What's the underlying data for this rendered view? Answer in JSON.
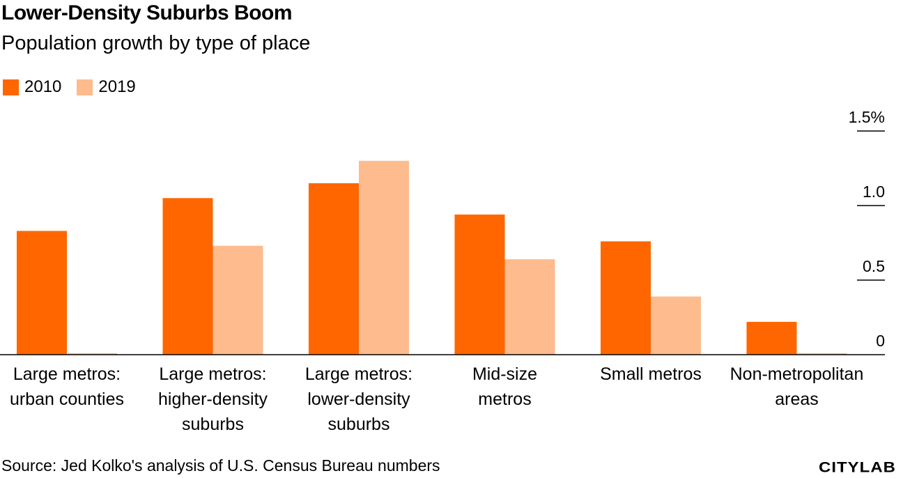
{
  "title": "Lower-Density Suburbs Boom",
  "subtitle": "Population growth by type of place",
  "source": "Source: Jed Kolko's analysis of U.S. Census Bureau numbers",
  "logo": "CITYLAB",
  "colors": {
    "series_2010": "#ff6600",
    "series_2019": "#fdbb8e",
    "axis": "#000000"
  },
  "legend": [
    {
      "label": "2010",
      "color": "#ff6600"
    },
    {
      "label": "2019",
      "color": "#fdbb8e"
    }
  ],
  "chart_data": {
    "type": "bar",
    "title": "Lower-Density Suburbs Boom",
    "subtitle": "Population growth by type of place",
    "xlabel": "",
    "ylabel": "",
    "ylim": [
      0,
      1.5
    ],
    "grid": false,
    "legend_position": "top-left",
    "y_axis_position": "right",
    "y_ticks": [
      {
        "value": 0,
        "label": "0"
      },
      {
        "value": 0.5,
        "label": "0.5"
      },
      {
        "value": 1.0,
        "label": "1.0"
      },
      {
        "value": 1.5,
        "label": "1.5%"
      }
    ],
    "categories": [
      [
        "Large metros:",
        "urban counties"
      ],
      [
        "Large metros:",
        "higher-density",
        "suburbs"
      ],
      [
        "Large metros:",
        "lower-density",
        "suburbs"
      ],
      [
        "Mid-size",
        "metros"
      ],
      [
        "Small metros"
      ],
      [
        "Non-metropolitan",
        "areas"
      ]
    ],
    "series": [
      {
        "name": "2010",
        "values": [
          0.83,
          1.05,
          1.15,
          0.94,
          0.76,
          0.22
        ]
      },
      {
        "name": "2019",
        "values": [
          0.01,
          0.73,
          1.3,
          0.64,
          0.39,
          0.01
        ]
      }
    ]
  }
}
